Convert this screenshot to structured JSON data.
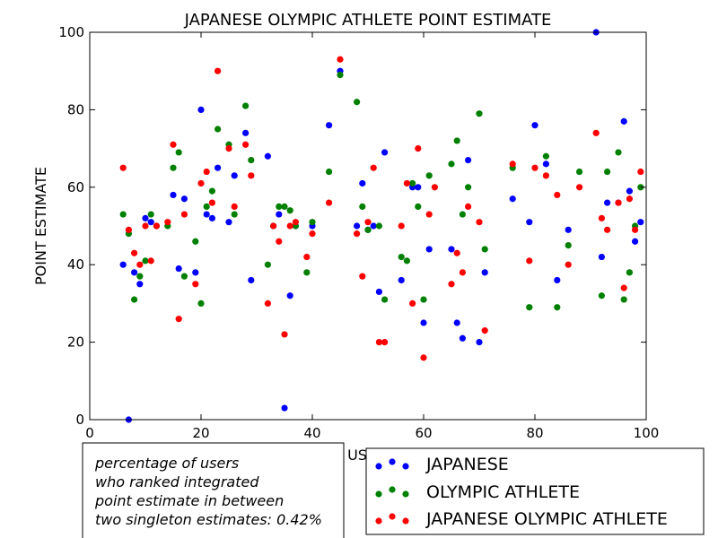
{
  "chart_data": {
    "type": "scatter",
    "title": "JAPANESE OLYMPIC ATHLETE POINT ESTIMATE",
    "xlabel": "US",
    "ylabel": "POINT ESTIMATE",
    "xlim": [
      0,
      100
    ],
    "ylim": [
      0,
      100
    ],
    "x_ticks": [
      "0",
      "20",
      "40",
      "60",
      "80",
      "100"
    ],
    "y_ticks": [
      "0",
      "20",
      "40",
      "60",
      "80",
      "100"
    ],
    "grid": false,
    "legend_position": "bottom-right",
    "series": [
      {
        "name": "JAPANESE",
        "color": "#0000ff",
        "points": [
          [
            6,
            40
          ],
          [
            7,
            0
          ],
          [
            8,
            38
          ],
          [
            9,
            35
          ],
          [
            10,
            52
          ],
          [
            11,
            51
          ],
          [
            12,
            50
          ],
          [
            15,
            58
          ],
          [
            16,
            39
          ],
          [
            17,
            57
          ],
          [
            19,
            38
          ],
          [
            20,
            80
          ],
          [
            21,
            53
          ],
          [
            22,
            52
          ],
          [
            23,
            65
          ],
          [
            25,
            51
          ],
          [
            26,
            63
          ],
          [
            28,
            74
          ],
          [
            29,
            36
          ],
          [
            32,
            68
          ],
          [
            33,
            50
          ],
          [
            34,
            53
          ],
          [
            35,
            3
          ],
          [
            36,
            32
          ],
          [
            37,
            50
          ],
          [
            40,
            50
          ],
          [
            43,
            76
          ],
          [
            45,
            90
          ],
          [
            48,
            50
          ],
          [
            49,
            61
          ],
          [
            50,
            49
          ],
          [
            51,
            50
          ],
          [
            52,
            33
          ],
          [
            53,
            69
          ],
          [
            56,
            36
          ],
          [
            58,
            60
          ],
          [
            59,
            60
          ],
          [
            60,
            25
          ],
          [
            61,
            44
          ],
          [
            65,
            44
          ],
          [
            66,
            25
          ],
          [
            67,
            21
          ],
          [
            68,
            67
          ],
          [
            70,
            20
          ],
          [
            71,
            38
          ],
          [
            76,
            57
          ],
          [
            79,
            51
          ],
          [
            80,
            76
          ],
          [
            82,
            66
          ],
          [
            84,
            36
          ],
          [
            86,
            49
          ],
          [
            91,
            100
          ],
          [
            92,
            42
          ],
          [
            93,
            56
          ],
          [
            95,
            56
          ],
          [
            96,
            77
          ],
          [
            97,
            59
          ],
          [
            98,
            46
          ],
          [
            99,
            51
          ]
        ]
      },
      {
        "name": "OLYMPIC ATHLETE",
        "color": "#008000",
        "points": [
          [
            6,
            53
          ],
          [
            7,
            48
          ],
          [
            8,
            31
          ],
          [
            9,
            37
          ],
          [
            10,
            41
          ],
          [
            11,
            53
          ],
          [
            12,
            50
          ],
          [
            14,
            50
          ],
          [
            15,
            65
          ],
          [
            16,
            69
          ],
          [
            17,
            37
          ],
          [
            19,
            46
          ],
          [
            20,
            30
          ],
          [
            21,
            55
          ],
          [
            22,
            59
          ],
          [
            23,
            75
          ],
          [
            25,
            71
          ],
          [
            26,
            53
          ],
          [
            28,
            81
          ],
          [
            29,
            67
          ],
          [
            32,
            40
          ],
          [
            33,
            50
          ],
          [
            34,
            55
          ],
          [
            35,
            55
          ],
          [
            36,
            54
          ],
          [
            37,
            50
          ],
          [
            39,
            38
          ],
          [
            40,
            51
          ],
          [
            43,
            64
          ],
          [
            45,
            89
          ],
          [
            48,
            82
          ],
          [
            49,
            55
          ],
          [
            50,
            49
          ],
          [
            52,
            50
          ],
          [
            53,
            31
          ],
          [
            56,
            42
          ],
          [
            57,
            41
          ],
          [
            58,
            61
          ],
          [
            59,
            55
          ],
          [
            60,
            31
          ],
          [
            61,
            63
          ],
          [
            65,
            66
          ],
          [
            66,
            72
          ],
          [
            67,
            53
          ],
          [
            68,
            60
          ],
          [
            70,
            79
          ],
          [
            71,
            44
          ],
          [
            76,
            65
          ],
          [
            79,
            29
          ],
          [
            82,
            68
          ],
          [
            84,
            29
          ],
          [
            86,
            45
          ],
          [
            88,
            64
          ],
          [
            92,
            32
          ],
          [
            93,
            64
          ],
          [
            95,
            69
          ],
          [
            96,
            31
          ],
          [
            97,
            38
          ],
          [
            98,
            50
          ],
          [
            99,
            60
          ]
        ]
      },
      {
        "name": "JAPANESE OLYMPIC ATHLETE",
        "color": "#ff0000",
        "points": [
          [
            6,
            65
          ],
          [
            7,
            49
          ],
          [
            8,
            43
          ],
          [
            9,
            40
          ],
          [
            10,
            50
          ],
          [
            11,
            41
          ],
          [
            12,
            50
          ],
          [
            14,
            51
          ],
          [
            15,
            71
          ],
          [
            16,
            26
          ],
          [
            17,
            53
          ],
          [
            19,
            35
          ],
          [
            20,
            61
          ],
          [
            21,
            64
          ],
          [
            22,
            56
          ],
          [
            23,
            90
          ],
          [
            25,
            70
          ],
          [
            26,
            55
          ],
          [
            28,
            71
          ],
          [
            29,
            63
          ],
          [
            32,
            30
          ],
          [
            33,
            50
          ],
          [
            34,
            46
          ],
          [
            35,
            22
          ],
          [
            36,
            50
          ],
          [
            37,
            51
          ],
          [
            39,
            42
          ],
          [
            40,
            48
          ],
          [
            43,
            56
          ],
          [
            45,
            93
          ],
          [
            48,
            48
          ],
          [
            49,
            37
          ],
          [
            50,
            51
          ],
          [
            51,
            65
          ],
          [
            52,
            20
          ],
          [
            53,
            20
          ],
          [
            56,
            50
          ],
          [
            57,
            61
          ],
          [
            58,
            30
          ],
          [
            59,
            70
          ],
          [
            60,
            16
          ],
          [
            61,
            53
          ],
          [
            62,
            60
          ],
          [
            65,
            35
          ],
          [
            66,
            43
          ],
          [
            67,
            38
          ],
          [
            68,
            55
          ],
          [
            70,
            51
          ],
          [
            71,
            23
          ],
          [
            76,
            66
          ],
          [
            79,
            41
          ],
          [
            80,
            65
          ],
          [
            82,
            63
          ],
          [
            84,
            58
          ],
          [
            86,
            40
          ],
          [
            88,
            60
          ],
          [
            91,
            74
          ],
          [
            92,
            52
          ],
          [
            93,
            49
          ],
          [
            95,
            56
          ],
          [
            96,
            34
          ],
          [
            97,
            57
          ],
          [
            98,
            49
          ],
          [
            99,
            64
          ]
        ]
      }
    ],
    "annotation": {
      "lines": [
        "percentage of users",
        "who ranked integrated",
        "point estimate in between",
        "two singleton estimates: 0.42%"
      ]
    }
  }
}
